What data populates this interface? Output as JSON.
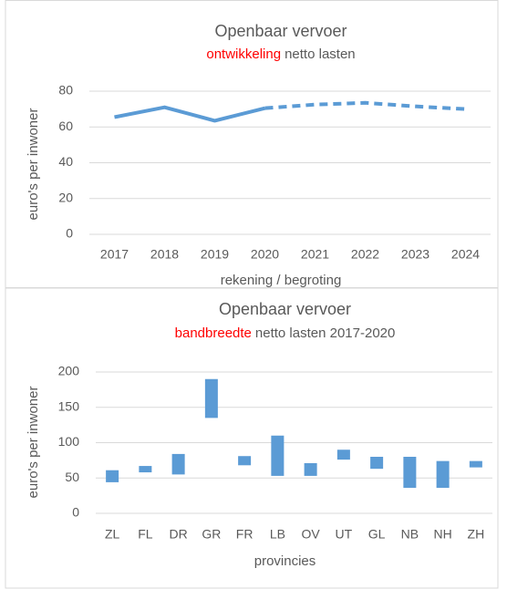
{
  "chart_data": [
    {
      "type": "line",
      "title": "Openbaar vervoer",
      "subtitle_highlight": "ontwikkeling",
      "subtitle": "netto lasten",
      "y_label": "euro's per inwoner",
      "x_label": "rekening / begroting",
      "categories": [
        "2017",
        "2018",
        "2019",
        "2020",
        "2021",
        "2022",
        "2023",
        "2024"
      ],
      "series": [
        {
          "color": "#5b9bd5",
          "dashed": false,
          "values": [
            65.5,
            71,
            63.5,
            70.5,
            null,
            null,
            null,
            null
          ]
        },
        {
          "color": "#5b9bd5",
          "dashed": true,
          "values": [
            null,
            null,
            null,
            70.5,
            72.5,
            73.5,
            71.5,
            70
          ]
        }
      ],
      "ylim": [
        0,
        80
      ],
      "yticks": [
        0,
        20,
        40,
        60,
        80
      ],
      "grid": true
    },
    {
      "type": "range",
      "title": "Openbaar vervoer",
      "subtitle_highlight": "bandbreedte",
      "subtitle": "netto lasten 2017-2020",
      "y_label": "euro's per inwoner",
      "x_label": "provincies",
      "categories": [
        "ZL",
        "FL",
        "DR",
        "GR",
        "FR",
        "LB",
        "OV",
        "UT",
        "GL",
        "NB",
        "NH",
        "ZH"
      ],
      "low": [
        44,
        58,
        55,
        135,
        68,
        53,
        53,
        76,
        63,
        36,
        36,
        65
      ],
      "high": [
        61,
        67,
        84,
        190,
        81,
        110,
        71,
        90,
        80,
        80,
        74,
        74
      ],
      "color": "#5b9bd5",
      "ylim": [
        0,
        200
      ],
      "yticks": [
        0,
        50,
        100,
        150,
        200
      ],
      "grid": true
    }
  ]
}
